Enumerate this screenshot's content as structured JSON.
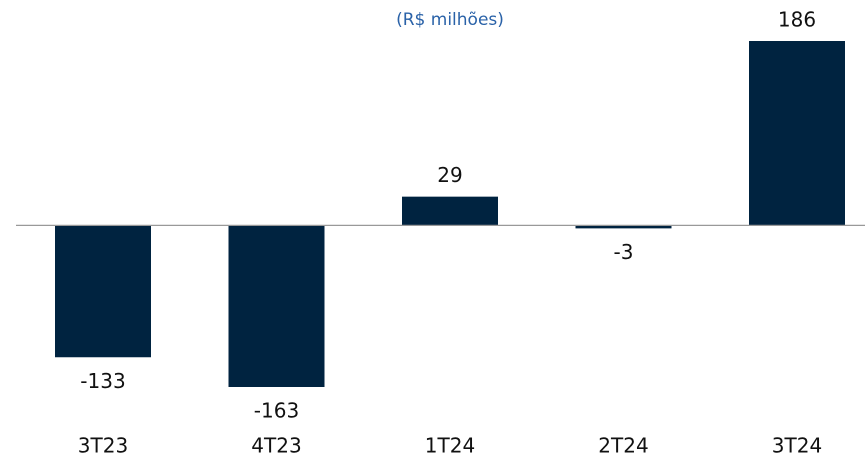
{
  "chart_data": {
    "type": "bar",
    "subtitle": "(R$ milhões)",
    "categories": [
      "3T23",
      "4T23",
      "1T24",
      "2T24",
      "3T24"
    ],
    "values": [
      -133,
      -163,
      29,
      -3,
      186
    ],
    "color": "#002340",
    "ylim": [
      -163,
      186
    ]
  }
}
